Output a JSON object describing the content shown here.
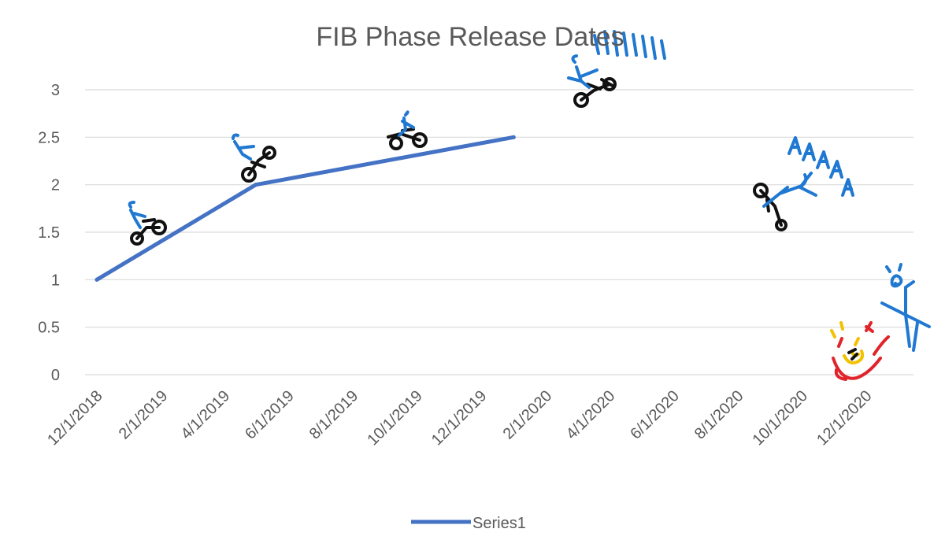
{
  "chart_data": {
    "type": "line",
    "title": "FIB Phase Release Dates",
    "xlabel": "",
    "ylabel": "",
    "x_tick_labels": [
      "12/1/2018",
      "2/1/2019",
      "4/1/2019",
      "6/1/2019",
      "8/1/2019",
      "10/1/2019",
      "12/1/2019",
      "2/1/2020",
      "4/1/2020",
      "6/1/2020",
      "8/1/2020",
      "10/1/2020",
      "12/1/2020"
    ],
    "y_tick_labels": [
      "0",
      "0.5",
      "1",
      "1.5",
      "2",
      "2.5",
      "3"
    ],
    "ylim": [
      0,
      3
    ],
    "xlim": [
      "12/1/2018",
      "12/1/2020"
    ],
    "grid": true,
    "legend_position": "bottom",
    "series": [
      {
        "name": "Series1",
        "color": "#4472c4",
        "points": [
          {
            "x": "12/1/2018",
            "y": 1
          },
          {
            "x": "5/1/2019",
            "y": 2
          },
          {
            "x": "1/1/2020",
            "y": 2.5
          }
        ]
      }
    ],
    "doodle_icons": [
      "motorcycle-rider-doodle",
      "stick-figure-doodle",
      "fire-explosion-doodle"
    ]
  }
}
